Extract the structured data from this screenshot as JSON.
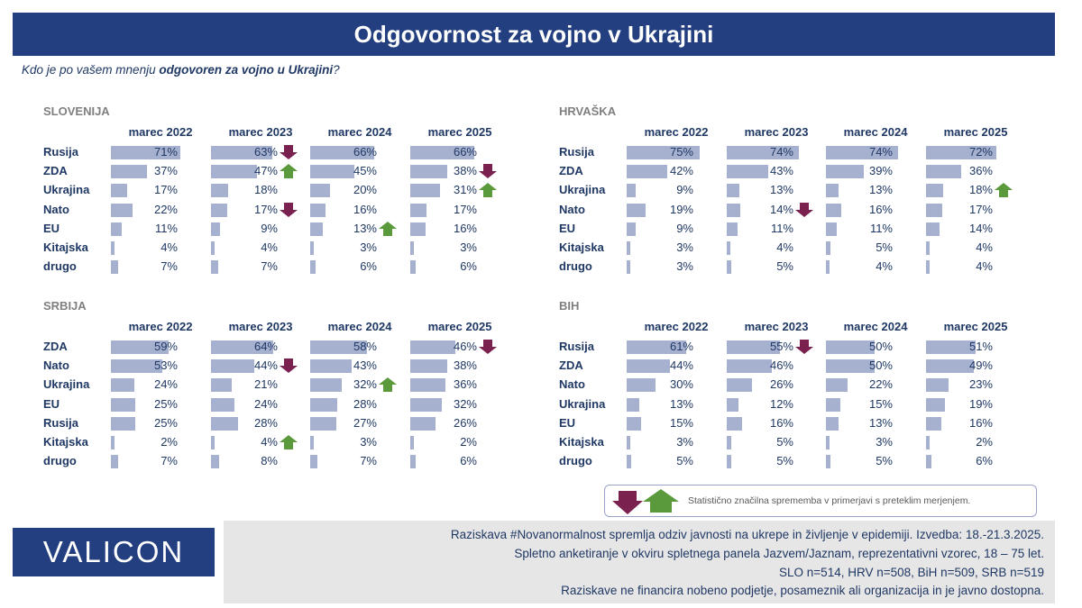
{
  "title": "Odgovornost za vojno v Ukrajini",
  "subtitle_prefix": "Kdo je po vašem mnenju ",
  "subtitle_bold": "odgovoren za vojno u Ukrajini",
  "subtitle_suffix": "?",
  "colors": {
    "bar": "#a6b0cf",
    "header": "#243f7f",
    "up": "#5a9a3c",
    "down": "#7b2150"
  },
  "chart_data": [
    {
      "type": "bar",
      "title": "SLOVENIJA",
      "periods": [
        "marec 2022",
        "marec 2023",
        "marec 2024",
        "marec 2025"
      ],
      "rows": [
        {
          "label": "Rusija",
          "values": [
            71,
            63,
            66,
            66
          ],
          "changes": [
            "",
            "down",
            "",
            ""
          ]
        },
        {
          "label": "ZDA",
          "values": [
            37,
            47,
            45,
            38
          ],
          "changes": [
            "",
            "up",
            "",
            "down"
          ]
        },
        {
          "label": "Ukrajina",
          "values": [
            17,
            18,
            20,
            31
          ],
          "changes": [
            "",
            "",
            "",
            "up"
          ]
        },
        {
          "label": "Nato",
          "values": [
            22,
            17,
            16,
            17
          ],
          "changes": [
            "",
            "down",
            "",
            ""
          ]
        },
        {
          "label": "EU",
          "values": [
            11,
            9,
            13,
            16
          ],
          "changes": [
            "",
            "",
            "up",
            ""
          ]
        },
        {
          "label": "Kitajska",
          "values": [
            4,
            4,
            3,
            3
          ],
          "changes": [
            "",
            "",
            "",
            ""
          ]
        },
        {
          "label": "drugo",
          "values": [
            7,
            7,
            6,
            6
          ],
          "changes": [
            "",
            "",
            "",
            ""
          ]
        }
      ]
    },
    {
      "type": "bar",
      "title": "HRVAŠKA",
      "periods": [
        "marec 2022",
        "marec 2023",
        "marec 2024",
        "marec 2025"
      ],
      "rows": [
        {
          "label": "Rusija",
          "values": [
            75,
            74,
            74,
            72
          ],
          "changes": [
            "",
            "",
            "",
            ""
          ]
        },
        {
          "label": "ZDA",
          "values": [
            42,
            43,
            39,
            36
          ],
          "changes": [
            "",
            "",
            "",
            ""
          ]
        },
        {
          "label": "Ukrajina",
          "values": [
            9,
            13,
            13,
            18
          ],
          "changes": [
            "",
            "",
            "",
            "up"
          ]
        },
        {
          "label": "Nato",
          "values": [
            19,
            14,
            16,
            17
          ],
          "changes": [
            "",
            "down",
            "",
            ""
          ]
        },
        {
          "label": "EU",
          "values": [
            9,
            11,
            11,
            14
          ],
          "changes": [
            "",
            "",
            "",
            ""
          ]
        },
        {
          "label": "Kitajska",
          "values": [
            3,
            4,
            5,
            4
          ],
          "changes": [
            "",
            "",
            "",
            ""
          ]
        },
        {
          "label": "drugo",
          "values": [
            3,
            5,
            4,
            4
          ],
          "changes": [
            "",
            "",
            "",
            ""
          ]
        }
      ]
    },
    {
      "type": "bar",
      "title": "SRBIJA",
      "periods": [
        "marec 2022",
        "marec 2023",
        "marec 2024",
        "marec 2025"
      ],
      "rows": [
        {
          "label": "ZDA",
          "values": [
            59,
            64,
            58,
            46
          ],
          "changes": [
            "",
            "",
            "",
            "down"
          ]
        },
        {
          "label": "Nato",
          "values": [
            53,
            44,
            43,
            38
          ],
          "changes": [
            "",
            "down",
            "",
            ""
          ]
        },
        {
          "label": "Ukrajina",
          "values": [
            24,
            21,
            32,
            36
          ],
          "changes": [
            "",
            "",
            "up",
            ""
          ]
        },
        {
          "label": "EU",
          "values": [
            25,
            24,
            28,
            32
          ],
          "changes": [
            "",
            "",
            "",
            ""
          ]
        },
        {
          "label": "Rusija",
          "values": [
            25,
            28,
            27,
            26
          ],
          "changes": [
            "",
            "",
            "",
            ""
          ]
        },
        {
          "label": "Kitajska",
          "values": [
            2,
            4,
            3,
            2
          ],
          "changes": [
            "",
            "up",
            "",
            ""
          ]
        },
        {
          "label": "drugo",
          "values": [
            7,
            8,
            7,
            6
          ],
          "changes": [
            "",
            "",
            "",
            ""
          ]
        }
      ]
    },
    {
      "type": "bar",
      "title": "BIH",
      "periods": [
        "marec 2022",
        "marec 2023",
        "marec 2024",
        "marec 2025"
      ],
      "rows": [
        {
          "label": "Rusija",
          "values": [
            61,
            55,
            50,
            51
          ],
          "changes": [
            "",
            "down",
            "",
            ""
          ]
        },
        {
          "label": "ZDA",
          "values": [
            44,
            46,
            50,
            49
          ],
          "changes": [
            "",
            "",
            "",
            ""
          ]
        },
        {
          "label": "Nato",
          "values": [
            30,
            26,
            22,
            23
          ],
          "changes": [
            "",
            "",
            "",
            ""
          ]
        },
        {
          "label": "Ukrajina",
          "values": [
            13,
            12,
            15,
            19
          ],
          "changes": [
            "",
            "",
            "",
            ""
          ]
        },
        {
          "label": "EU",
          "values": [
            15,
            16,
            13,
            16
          ],
          "changes": [
            "",
            "",
            "",
            ""
          ]
        },
        {
          "label": "Kitajska",
          "values": [
            3,
            5,
            3,
            2
          ],
          "changes": [
            "",
            "",
            "",
            ""
          ]
        },
        {
          "label": "drugo",
          "values": [
            5,
            5,
            5,
            6
          ],
          "changes": [
            "",
            "",
            "",
            ""
          ]
        }
      ]
    }
  ],
  "legend": {
    "text": "Statistično značilna sprememba v primerjavi s preteklim merjenjem."
  },
  "logo": "VALICON",
  "footer": [
    "Raziskava #Novanormalnost spremlja odziv javnosti na ukrepe in življenje v epidemiji. Izvedba: 18.-21.3.2025.",
    "Spletno anketiranje v okviru spletnega panela Jazvem/Jaznam, reprezentativni vzorec, 18 – 75 let.",
    "SLO n=514, HRV n=508, BiH n=509, SRB n=519",
    "Raziskave ne financira nobeno podjetje, posameznik ali organizacija in je javno dostopna."
  ]
}
